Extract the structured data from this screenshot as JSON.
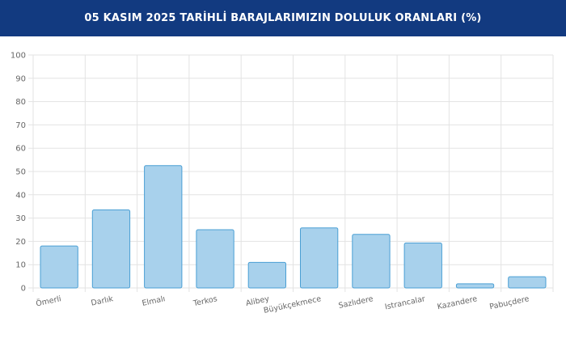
{
  "header": {
    "title": "05 KASIM 2025 TARİHLİ BARAJLARIMIZIN DOLULUK ORANLARI (%)"
  },
  "colors": {
    "header_bg": "#123a80",
    "bar_fill": "#a8d1ec",
    "bar_stroke": "#4a9fd4",
    "grid": "#e3e3e3"
  },
  "chart_data": {
    "type": "bar",
    "title": "05 KASIM 2025 TARİHLİ BARAJLARIMIZIN DOLULUK ORANLARI (%)",
    "xlabel": "",
    "ylabel": "",
    "categories": [
      "Ömerli",
      "Darlık",
      "Elmalı",
      "Terkos",
      "Alibey",
      "Büyükçekmece",
      "Sazlıdere",
      "Istrancalar",
      "Kazandere",
      "Pabuçdere"
    ],
    "values": [
      18,
      33.5,
      52.5,
      25,
      11,
      25.8,
      23,
      19.3,
      1.8,
      4.8
    ],
    "ylim": [
      0,
      100
    ],
    "yticks": [
      "0",
      "10",
      "20",
      "30",
      "40",
      "50",
      "60",
      "70",
      "80",
      "90",
      "100"
    ],
    "grid": true,
    "legend": "none"
  }
}
